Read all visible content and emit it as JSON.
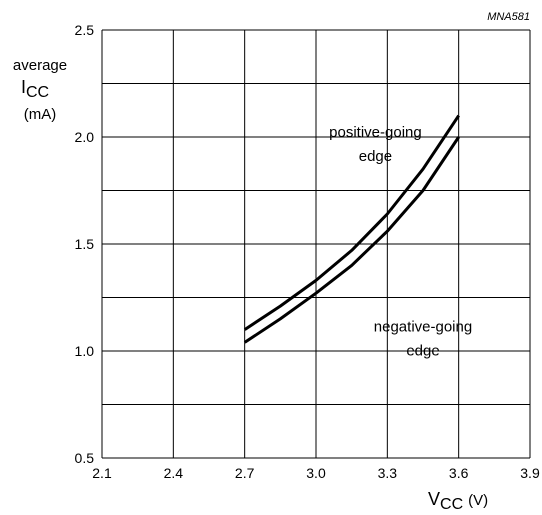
{
  "chart_data": {
    "type": "line",
    "figure_id": "MNA581",
    "title": "",
    "ylabel": {
      "main": "average",
      "var": "I",
      "sub": "CC",
      "unit": "(mA)"
    },
    "xlabel": {
      "var": "V",
      "sub": "CC",
      "unit": "(V)"
    },
    "xlim": [
      2.1,
      3.9
    ],
    "ylim": [
      0.5,
      2.5
    ],
    "x_ticks": [
      "2.1",
      "2.4",
      "2.7",
      "3.0",
      "3.3",
      "3.6",
      "3.9"
    ],
    "y_ticks": [
      "2.5",
      "2.0",
      "1.5",
      "1.0",
      "0.5"
    ],
    "grid": true,
    "series": [
      {
        "name": "positive-going edge",
        "x": [
          2.7,
          2.85,
          3.0,
          3.15,
          3.3,
          3.45,
          3.6
        ],
        "y": [
          1.1,
          1.21,
          1.33,
          1.47,
          1.64,
          1.85,
          2.1
        ]
      },
      {
        "name": "negative-going edge",
        "x": [
          2.7,
          2.85,
          3.0,
          3.15,
          3.3,
          3.45,
          3.6
        ],
        "y": [
          1.04,
          1.15,
          1.27,
          1.4,
          1.56,
          1.75,
          2.0
        ]
      }
    ],
    "annotations": [
      {
        "lines": [
          "positive-going",
          "edge"
        ],
        "x": 3.25,
        "y": 2.0
      },
      {
        "lines": [
          "negative-going",
          "edge"
        ],
        "x": 3.45,
        "y": 1.09
      }
    ]
  }
}
